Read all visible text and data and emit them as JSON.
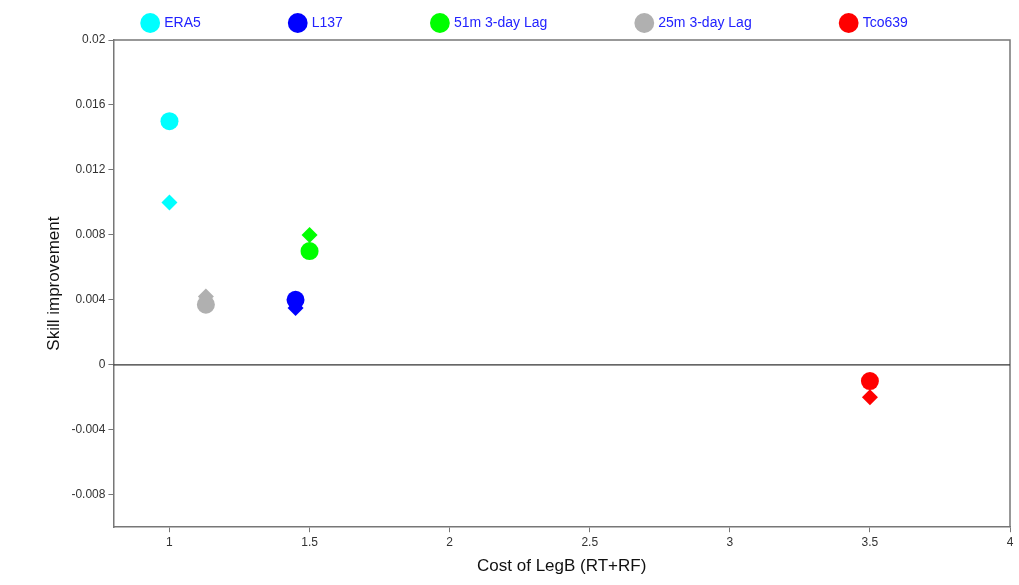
{
  "chart_data": {
    "type": "scatter",
    "xlabel": "Cost of LegB (RT+RF)",
    "ylabel": "Skill improvement",
    "xlim": [
      0.8,
      4
    ],
    "xticks": [
      1,
      1.5,
      2,
      2.5,
      3,
      3.5,
      4
    ],
    "ylim": [
      -0.01,
      0.02
    ],
    "yticks": [
      -0.008,
      -0.004,
      0,
      0.004,
      0.008,
      0.012,
      0.016,
      0.02
    ],
    "grid": false,
    "legend": "top",
    "ref_lines": [
      {
        "axis": "y",
        "value": 0,
        "color": "#333333"
      }
    ],
    "series": [
      {
        "name": "ERA5",
        "color": "#00ffff",
        "marker": "circle",
        "x": [
          1
        ],
        "values": [
          0.015
        ]
      },
      {
        "color": "#00ffff",
        "marker": "diamond",
        "x": [
          1
        ],
        "values": [
          0.01
        ]
      },
      {
        "name": "L137",
        "color": "#0000ff",
        "marker": "circle",
        "x": [
          1.45
        ],
        "values": [
          0.004
        ]
      },
      {
        "color": "#0000ff",
        "marker": "diamond",
        "x": [
          1.45
        ],
        "values": [
          0.0035
        ]
      },
      {
        "name": "51m 3-day Lag",
        "color": "#00ff00",
        "marker": "circle",
        "x": [
          1.5
        ],
        "values": [
          0.007
        ]
      },
      {
        "color": "#00ff00",
        "marker": "diamond",
        "x": [
          1.5
        ],
        "values": [
          0.008
        ]
      },
      {
        "name": "25m 3-day Lag",
        "color": "#b0b0b0",
        "marker": "circle",
        "x": [
          1.13
        ],
        "values": [
          0.0037
        ]
      },
      {
        "color": "#b0b0b0",
        "marker": "diamond",
        "x": [
          1.13
        ],
        "values": [
          0.0042
        ]
      },
      {
        "name": "Tco639",
        "color": "#ff0000",
        "marker": "circle",
        "x": [
          3.5
        ],
        "values": [
          -0.001
        ]
      },
      {
        "color": "#ff0000",
        "marker": "diamond",
        "x": [
          3.5
        ],
        "values": [
          -0.002
        ]
      }
    ]
  }
}
